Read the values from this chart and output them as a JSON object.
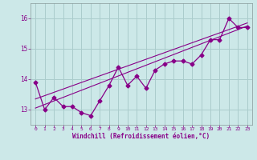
{
  "xlabel": "Windchill (Refroidissement éolien,°C)",
  "bg_color": "#cce8e8",
  "grid_color": "#aacccc",
  "line_color": "#880088",
  "x_data": [
    0,
    1,
    2,
    3,
    4,
    5,
    6,
    7,
    8,
    9,
    10,
    11,
    12,
    13,
    14,
    15,
    16,
    17,
    18,
    19,
    20,
    21,
    22,
    23
  ],
  "y_data": [
    13.9,
    13.0,
    13.4,
    13.1,
    13.1,
    12.9,
    12.8,
    13.3,
    13.8,
    14.4,
    13.8,
    14.1,
    13.7,
    14.3,
    14.5,
    14.6,
    14.6,
    14.5,
    14.8,
    15.3,
    15.3,
    16.0,
    15.7,
    15.7
  ],
  "ylim": [
    12.5,
    16.5
  ],
  "yticks": [
    13,
    14,
    15,
    16
  ],
  "xticks": [
    0,
    1,
    2,
    3,
    4,
    5,
    6,
    7,
    8,
    9,
    10,
    11,
    12,
    13,
    14,
    15,
    16,
    17,
    18,
    19,
    20,
    21,
    22,
    23
  ],
  "trend_x": [
    0,
    23
  ],
  "trend_y": [
    13.05,
    15.75
  ],
  "trend2_x": [
    0,
    23
  ],
  "trend2_y": [
    13.35,
    15.85
  ]
}
